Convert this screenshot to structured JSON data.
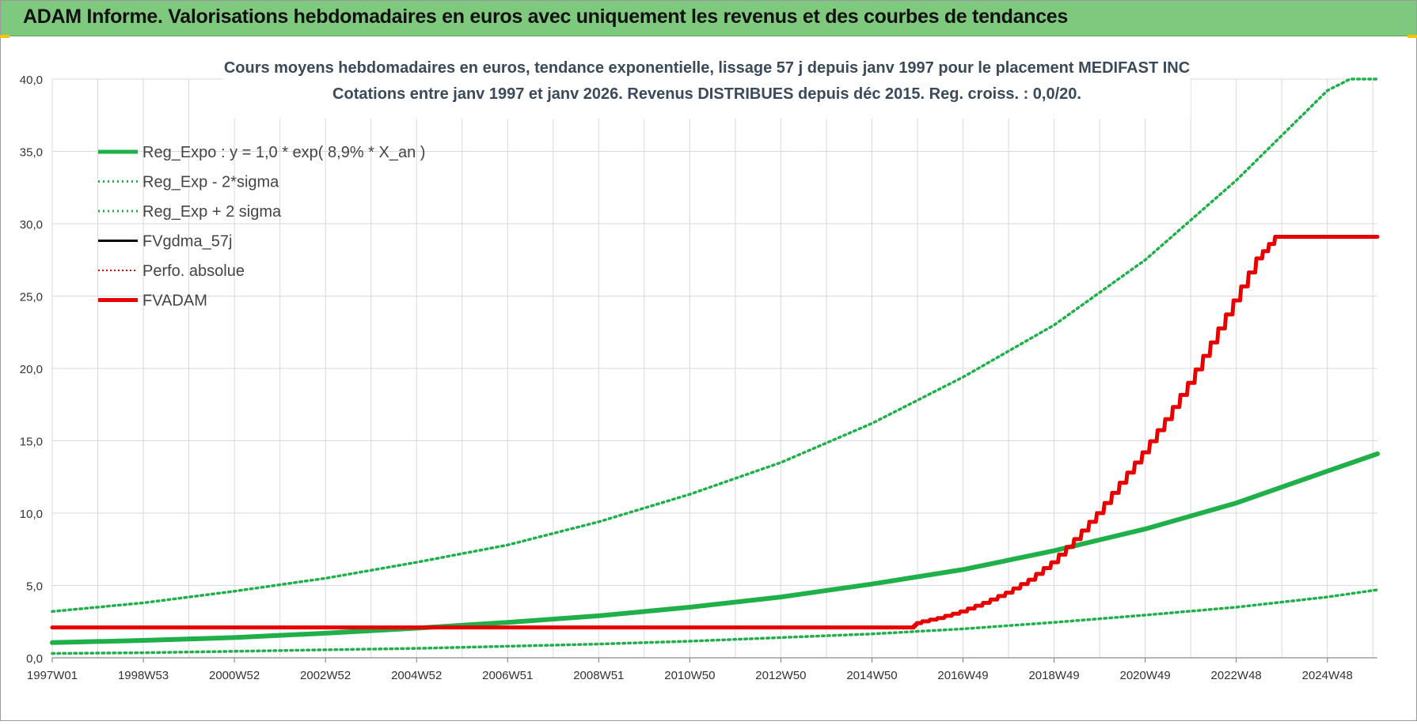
{
  "header": {
    "title": "ADAM Informe. Valorisations hebdomadaires en euros avec uniquement les revenus et des courbes de tendances"
  },
  "colors": {
    "header_bg": "#7ec97e",
    "reg_expo": "#1fb04a",
    "sigma": "#1fb04a",
    "fvgdma": "#000000",
    "perfo": "#e00000",
    "fvadam": "#e60000",
    "grid": "#d9d9d9"
  },
  "chart_data": {
    "type": "line",
    "title": "Cours moyens hebdomadaires en euros, tendance exponentielle, lissage 57 j depuis janv 1997 pour le placement MEDIFAST INC",
    "subtitle": "Cotations entre janv 1997 et janv 2026. Revenus DISTRIBUES depuis déc 2015. Reg. croiss. : 0,0/20.",
    "xlabel": "",
    "ylabel": "",
    "x_range": [
      1997.0,
      2026.1
    ],
    "ylim": [
      0,
      40
    ],
    "y_ticks": [
      "0,0",
      "5,0",
      "10,0",
      "15,0",
      "20,0",
      "25,0",
      "30,0",
      "35,0",
      "40,0"
    ],
    "x_tick_labels": [
      "1997W01",
      "1998W53",
      "2000W52",
      "2002W52",
      "2004W52",
      "2006W51",
      "2008W51",
      "2010W50",
      "2012W50",
      "2014W50",
      "2016W49",
      "2018W49",
      "2020W49",
      "2022W48",
      "2024W48"
    ],
    "grid": true,
    "legend_position": "top-left",
    "legend": [
      {
        "label": "Reg_Expo : y = 1,0 * exp( 8,9% *  X_an )",
        "style": "solid-thick",
        "color": "#1fb04a"
      },
      {
        "label": "Reg_Exp - 2*sigma",
        "style": "dotted",
        "color": "#1fb04a"
      },
      {
        "label": "Reg_Exp + 2 sigma",
        "style": "dotted",
        "color": "#1fb04a"
      },
      {
        "label": "FVgdma_57j",
        "style": "solid",
        "color": "#000000"
      },
      {
        "label": "Perfo. absolue",
        "style": "dotted-thin",
        "color": "#e00000"
      },
      {
        "label": "FVADAM",
        "style": "solid-thick",
        "color": "#e60000"
      }
    ],
    "series": [
      {
        "name": "Reg_Expo : y = 1,0 * exp( 8,9% *  X_an )",
        "x": [
          1997,
          1999,
          2001,
          2003,
          2005,
          2007,
          2009,
          2011,
          2013,
          2015,
          2017,
          2019,
          2021,
          2023,
          2025,
          2026.1
        ],
        "y": [
          1.05,
          1.2,
          1.4,
          1.7,
          2.05,
          2.45,
          2.9,
          3.5,
          4.2,
          5.1,
          6.1,
          7.4,
          8.9,
          10.7,
          12.9,
          14.1
        ]
      },
      {
        "name": "Reg_Exp - 2*sigma",
        "x": [
          1997,
          1999,
          2001,
          2003,
          2005,
          2007,
          2009,
          2011,
          2013,
          2015,
          2017,
          2019,
          2021,
          2023,
          2025,
          2026.1
        ],
        "y": [
          0.3,
          0.35,
          0.45,
          0.55,
          0.65,
          0.8,
          0.95,
          1.15,
          1.4,
          1.65,
          2.0,
          2.45,
          2.95,
          3.5,
          4.2,
          4.7
        ]
      },
      {
        "name": "Reg_Exp + 2 sigma",
        "x": [
          1997,
          1999,
          2001,
          2003,
          2005,
          2007,
          2009,
          2011,
          2013,
          2015,
          2017,
          2019,
          2021,
          2023,
          2025,
          2025.5,
          2026.1
        ],
        "y": [
          3.2,
          3.8,
          4.6,
          5.5,
          6.6,
          7.8,
          9.4,
          11.3,
          13.5,
          16.2,
          19.4,
          23.0,
          27.5,
          33.0,
          39.2,
          40.0,
          40.0
        ]
      },
      {
        "name": "FVgdma_57j",
        "x": [
          1997,
          2015.9,
          2016.0,
          2016.5,
          2017.0,
          2017.5,
          2018.0,
          2018.5,
          2019.0,
          2019.5,
          2020.0,
          2020.5,
          2021.0,
          2021.5,
          2022.0,
          2022.5,
          2023.0,
          2023.5,
          2023.9,
          2024.0,
          2026.1
        ],
        "y": [
          2.1,
          2.1,
          2.4,
          2.75,
          3.2,
          3.8,
          4.5,
          5.4,
          6.6,
          8.2,
          10.0,
          12.1,
          14.2,
          16.5,
          19.0,
          21.8,
          24.7,
          27.6,
          29.1,
          29.1,
          29.1
        ]
      },
      {
        "name": "FVADAM",
        "x": [
          1997,
          2015.9,
          2016.0,
          2016.5,
          2017.0,
          2017.5,
          2018.0,
          2018.5,
          2019.0,
          2019.5,
          2020.0,
          2020.5,
          2021.0,
          2021.5,
          2022.0,
          2022.5,
          2023.0,
          2023.5,
          2023.9,
          2024.0,
          2026.1
        ],
        "y": [
          2.1,
          2.1,
          2.4,
          2.75,
          3.2,
          3.8,
          4.5,
          5.4,
          6.6,
          8.2,
          10.0,
          12.1,
          14.2,
          16.5,
          19.0,
          21.8,
          24.7,
          27.6,
          29.1,
          29.1,
          29.1
        ]
      }
    ]
  }
}
